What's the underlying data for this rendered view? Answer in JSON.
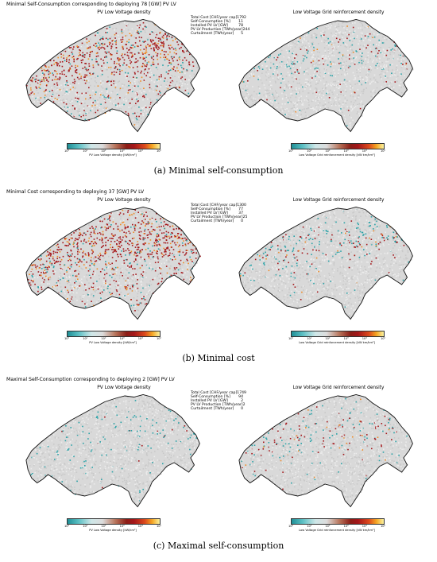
{
  "panels": [
    {
      "figure_title": "Minimal Self-Consumption corresponding to deploying 78 [GW] PV LV",
      "left_map_title": "PV Low Voltage density",
      "right_map_title": "Low Voltage Grid reinforcement density",
      "stats": [
        {
          "label": "Total Cost [CHF/year cap]",
          "value": "1792"
        },
        {
          "label": "Self-Consumption [%]",
          "value": "11"
        },
        {
          "label": "Installed PV LV [GW]",
          "value": "78"
        },
        {
          "label": "PV LV Production [TWh/year]",
          "value": "244"
        },
        {
          "label": "Curtailment [TWh/year]",
          "value": "5"
        }
      ],
      "left_cbar_label": "PV Low Voltage density [kW/km²]",
      "right_cbar_label": "Low Voltage Grid reinforcement density [kW km/km²]",
      "caption": "(a) Minimal self-consumption",
      "left_level": 0.85,
      "right_level": 0.35
    },
    {
      "figure_title": "Minimal Cost corresponding to deploying 37 [GW] PV LV",
      "left_map_title": "PV Low Voltage density",
      "right_map_title": "Low Voltage Grid reinforcement density",
      "stats": [
        {
          "label": "Total Cost [CHF/year cap]",
          "value": "1300"
        },
        {
          "label": "Self-Consumption [%]",
          "value": "77"
        },
        {
          "label": "Installed PV LV [GW]",
          "value": "37"
        },
        {
          "label": "PV LV Production [TWh/year]",
          "value": "25"
        },
        {
          "label": "Curtailment [TWh/year]",
          "value": "0"
        }
      ],
      "left_cbar_label": "PV Low Voltage density [kW/km²]",
      "right_cbar_label": "Low Voltage Grid reinforcement density [kW km/km²]",
      "caption": "(b) Minimal cost",
      "left_level": 0.95,
      "right_level": 0.55
    },
    {
      "figure_title": "Maximal Self-Consumption corresponding to deploying 2 [GW] PV LV",
      "left_map_title": "PV Low Voltage density",
      "right_map_title": "Low Voltage Grid reinforcement density",
      "stats": [
        {
          "label": "Total Cost [CHF/year cap]",
          "value": "1749"
        },
        {
          "label": "Self-Consumption [%]",
          "value": "94"
        },
        {
          "label": "Installed PV LV [GW]",
          "value": "2"
        },
        {
          "label": "PV LV Production [TWh/year]",
          "value": "2"
        },
        {
          "label": "Curtailment [TWh/year]",
          "value": "0"
        }
      ],
      "left_cbar_label": "PV Low Voltage density [kW/km²]",
      "right_cbar_label": "Low Voltage Grid reinforcement density [kW km/km²]",
      "caption": "(c) Maximal self-consumption",
      "left_level": 0.15,
      "right_level": 0.45
    }
  ],
  "colorbar_ticks": [
    "10⁰",
    "10¹",
    "10²",
    "10³",
    "10⁴",
    "10⁵"
  ],
  "colors": {
    "border": "#111111",
    "land": "#d9d9d9",
    "teal": "#2aa3a8",
    "red": "#a4161a",
    "orange": "#f08a24",
    "yellow": "#f7e08a"
  }
}
